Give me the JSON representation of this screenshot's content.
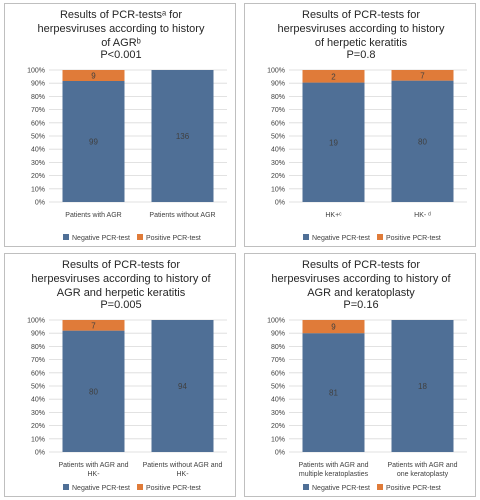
{
  "chart_data": [
    {
      "type": "bar",
      "stacked": "percent",
      "title_lines": [
        "Results of PCR-testsᵃ for",
        "herpesviruses according to history",
        "of AGRᵇ"
      ],
      "pvalue": "P<0.001",
      "categories": [
        "Patients with AGR",
        "Patients without AGR"
      ],
      "series": [
        {
          "name": "Negative PCR-test",
          "values": [
            99,
            136
          ],
          "color": "#4f6f96"
        },
        {
          "name": "Positive PCR-test",
          "values": [
            9,
            0
          ],
          "color": "#e07b39"
        }
      ],
      "y_ticks": [
        "0%",
        "10%",
        "20%",
        "30%",
        "40%",
        "50%",
        "60%",
        "70%",
        "80%",
        "90%",
        "100%"
      ],
      "ylim": [
        0,
        100
      ],
      "legend": "bottom"
    },
    {
      "type": "bar",
      "stacked": "percent",
      "title_lines": [
        "Results of PCR-tests for",
        "herpesviruses according to history",
        "of herpetic keratitis"
      ],
      "pvalue": "P=0.8",
      "categories": [
        "HK+ᶜ",
        "HK- ᵈ"
      ],
      "series": [
        {
          "name": "Negative PCR-test",
          "values": [
            19,
            80
          ],
          "color": "#4f6f96"
        },
        {
          "name": "Positive PCR-test",
          "values": [
            2,
            7
          ],
          "color": "#e07b39"
        }
      ],
      "y_ticks": [
        "0%",
        "10%",
        "20%",
        "30%",
        "40%",
        "50%",
        "60%",
        "70%",
        "80%",
        "90%",
        "100%"
      ],
      "ylim": [
        0,
        100
      ],
      "legend": "bottom"
    },
    {
      "type": "bar",
      "stacked": "percent",
      "title_lines": [
        "Results of PCR-tests for",
        "herpesviruses according to history of",
        "AGR and herpetic keratitis"
      ],
      "pvalue": "P=0.005",
      "categories": [
        "Patients with AGR and|HK-",
        "Patients without AGR and|HK-"
      ],
      "series": [
        {
          "name": "Negative PCR-test",
          "values": [
            80,
            94
          ],
          "color": "#4f6f96"
        },
        {
          "name": "Positive PCR-test",
          "values": [
            7,
            0
          ],
          "color": "#e07b39"
        }
      ],
      "y_ticks": [
        "0%",
        "10%",
        "20%",
        "30%",
        "40%",
        "50%",
        "60%",
        "70%",
        "80%",
        "90%",
        "100%"
      ],
      "ylim": [
        0,
        100
      ],
      "legend": "bottom"
    },
    {
      "type": "bar",
      "stacked": "percent",
      "title_lines": [
        "Results of PCR-tests for",
        "herpesviruses according to history of",
        "AGR and keratoplasty"
      ],
      "pvalue": "P=0.16",
      "categories": [
        "Patients with AGR and|multiple keratoplasties",
        "Patients with AGR and|one keratoplasty"
      ],
      "series": [
        {
          "name": "Negative PCR-test",
          "values": [
            81,
            18
          ],
          "color": "#4f6f96"
        },
        {
          "name": "Positive PCR-test",
          "values": [
            9,
            0
          ],
          "color": "#e07b39"
        }
      ],
      "y_ticks": [
        "0%",
        "10%",
        "20%",
        "30%",
        "40%",
        "50%",
        "60%",
        "70%",
        "80%",
        "90%",
        "100%"
      ],
      "ylim": [
        0,
        100
      ],
      "legend": "bottom"
    }
  ]
}
